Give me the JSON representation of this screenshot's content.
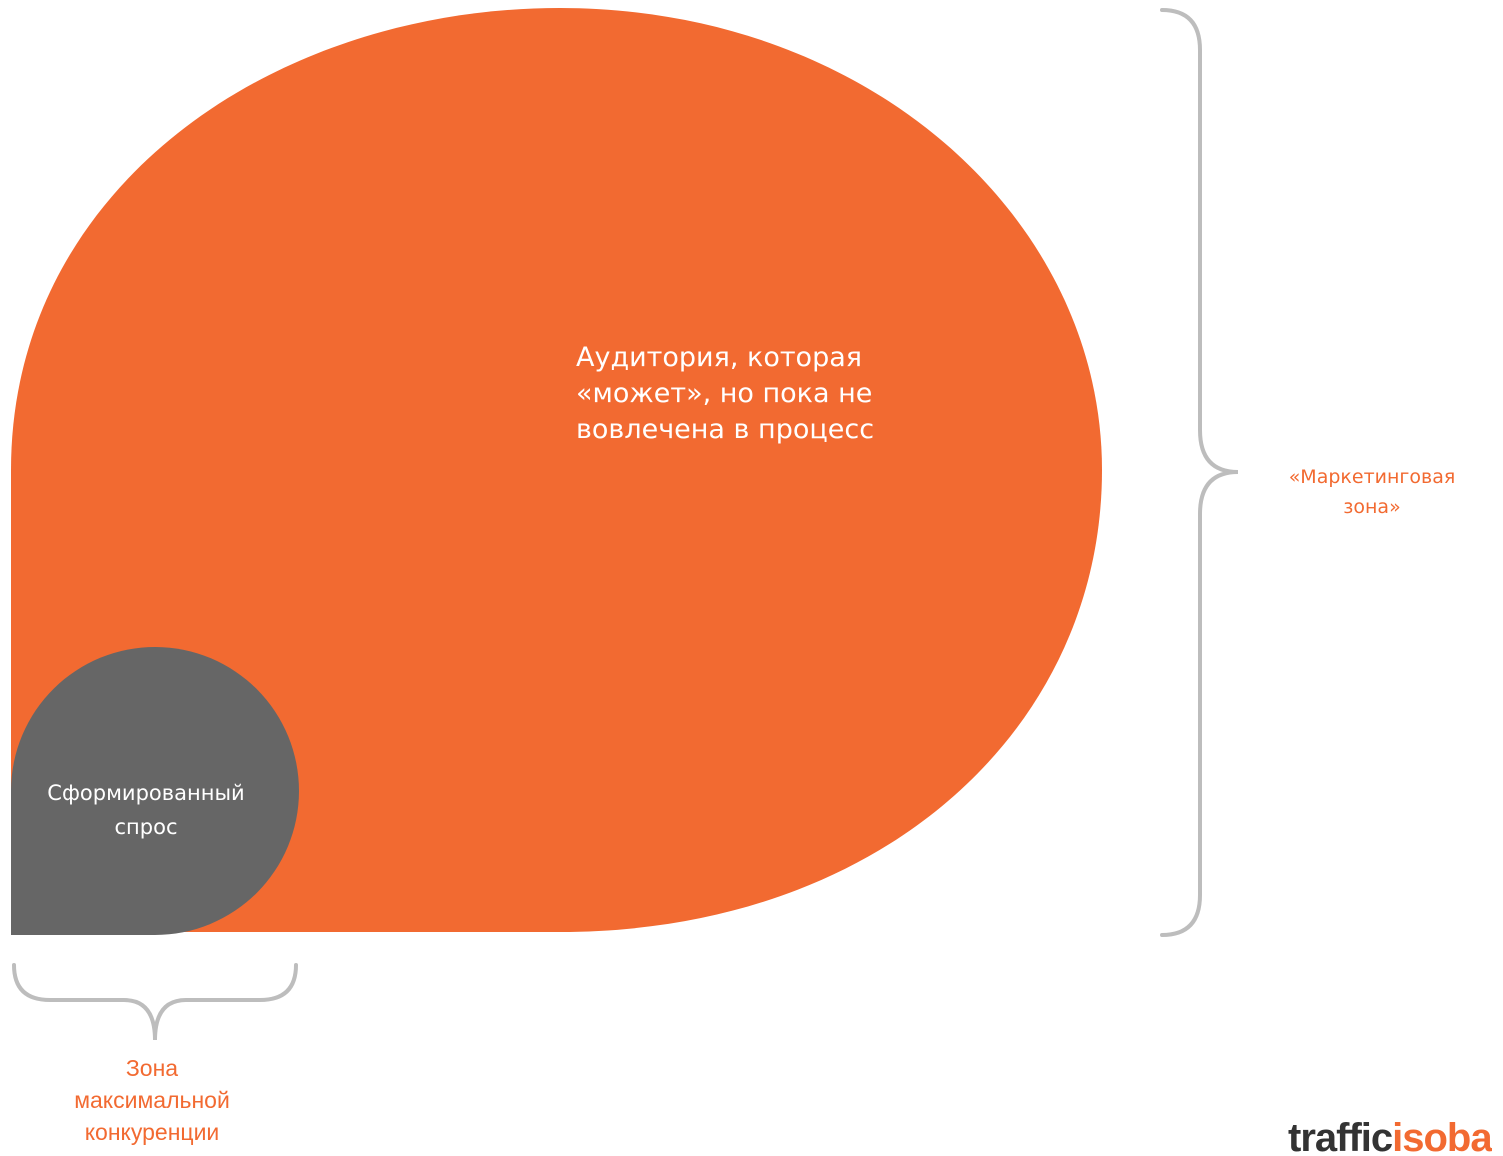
{
  "diagram": {
    "audience_text": "Аудитория, которая\n«может», но пока не\nвовлечена в процесс",
    "demand_text": "Сформированный\nспрос",
    "marketing_zone_text": "«Маркетинговая\nзона»",
    "competition_zone_text": "Зона\nмаксимальной\nконкуренции"
  },
  "logo": {
    "part1": "traffic",
    "part2": "isoba"
  },
  "colors": {
    "orange": "#F26A31",
    "dark_gray": "#666666",
    "brace": "#BDBDBD",
    "white": "#FFFFFF"
  }
}
